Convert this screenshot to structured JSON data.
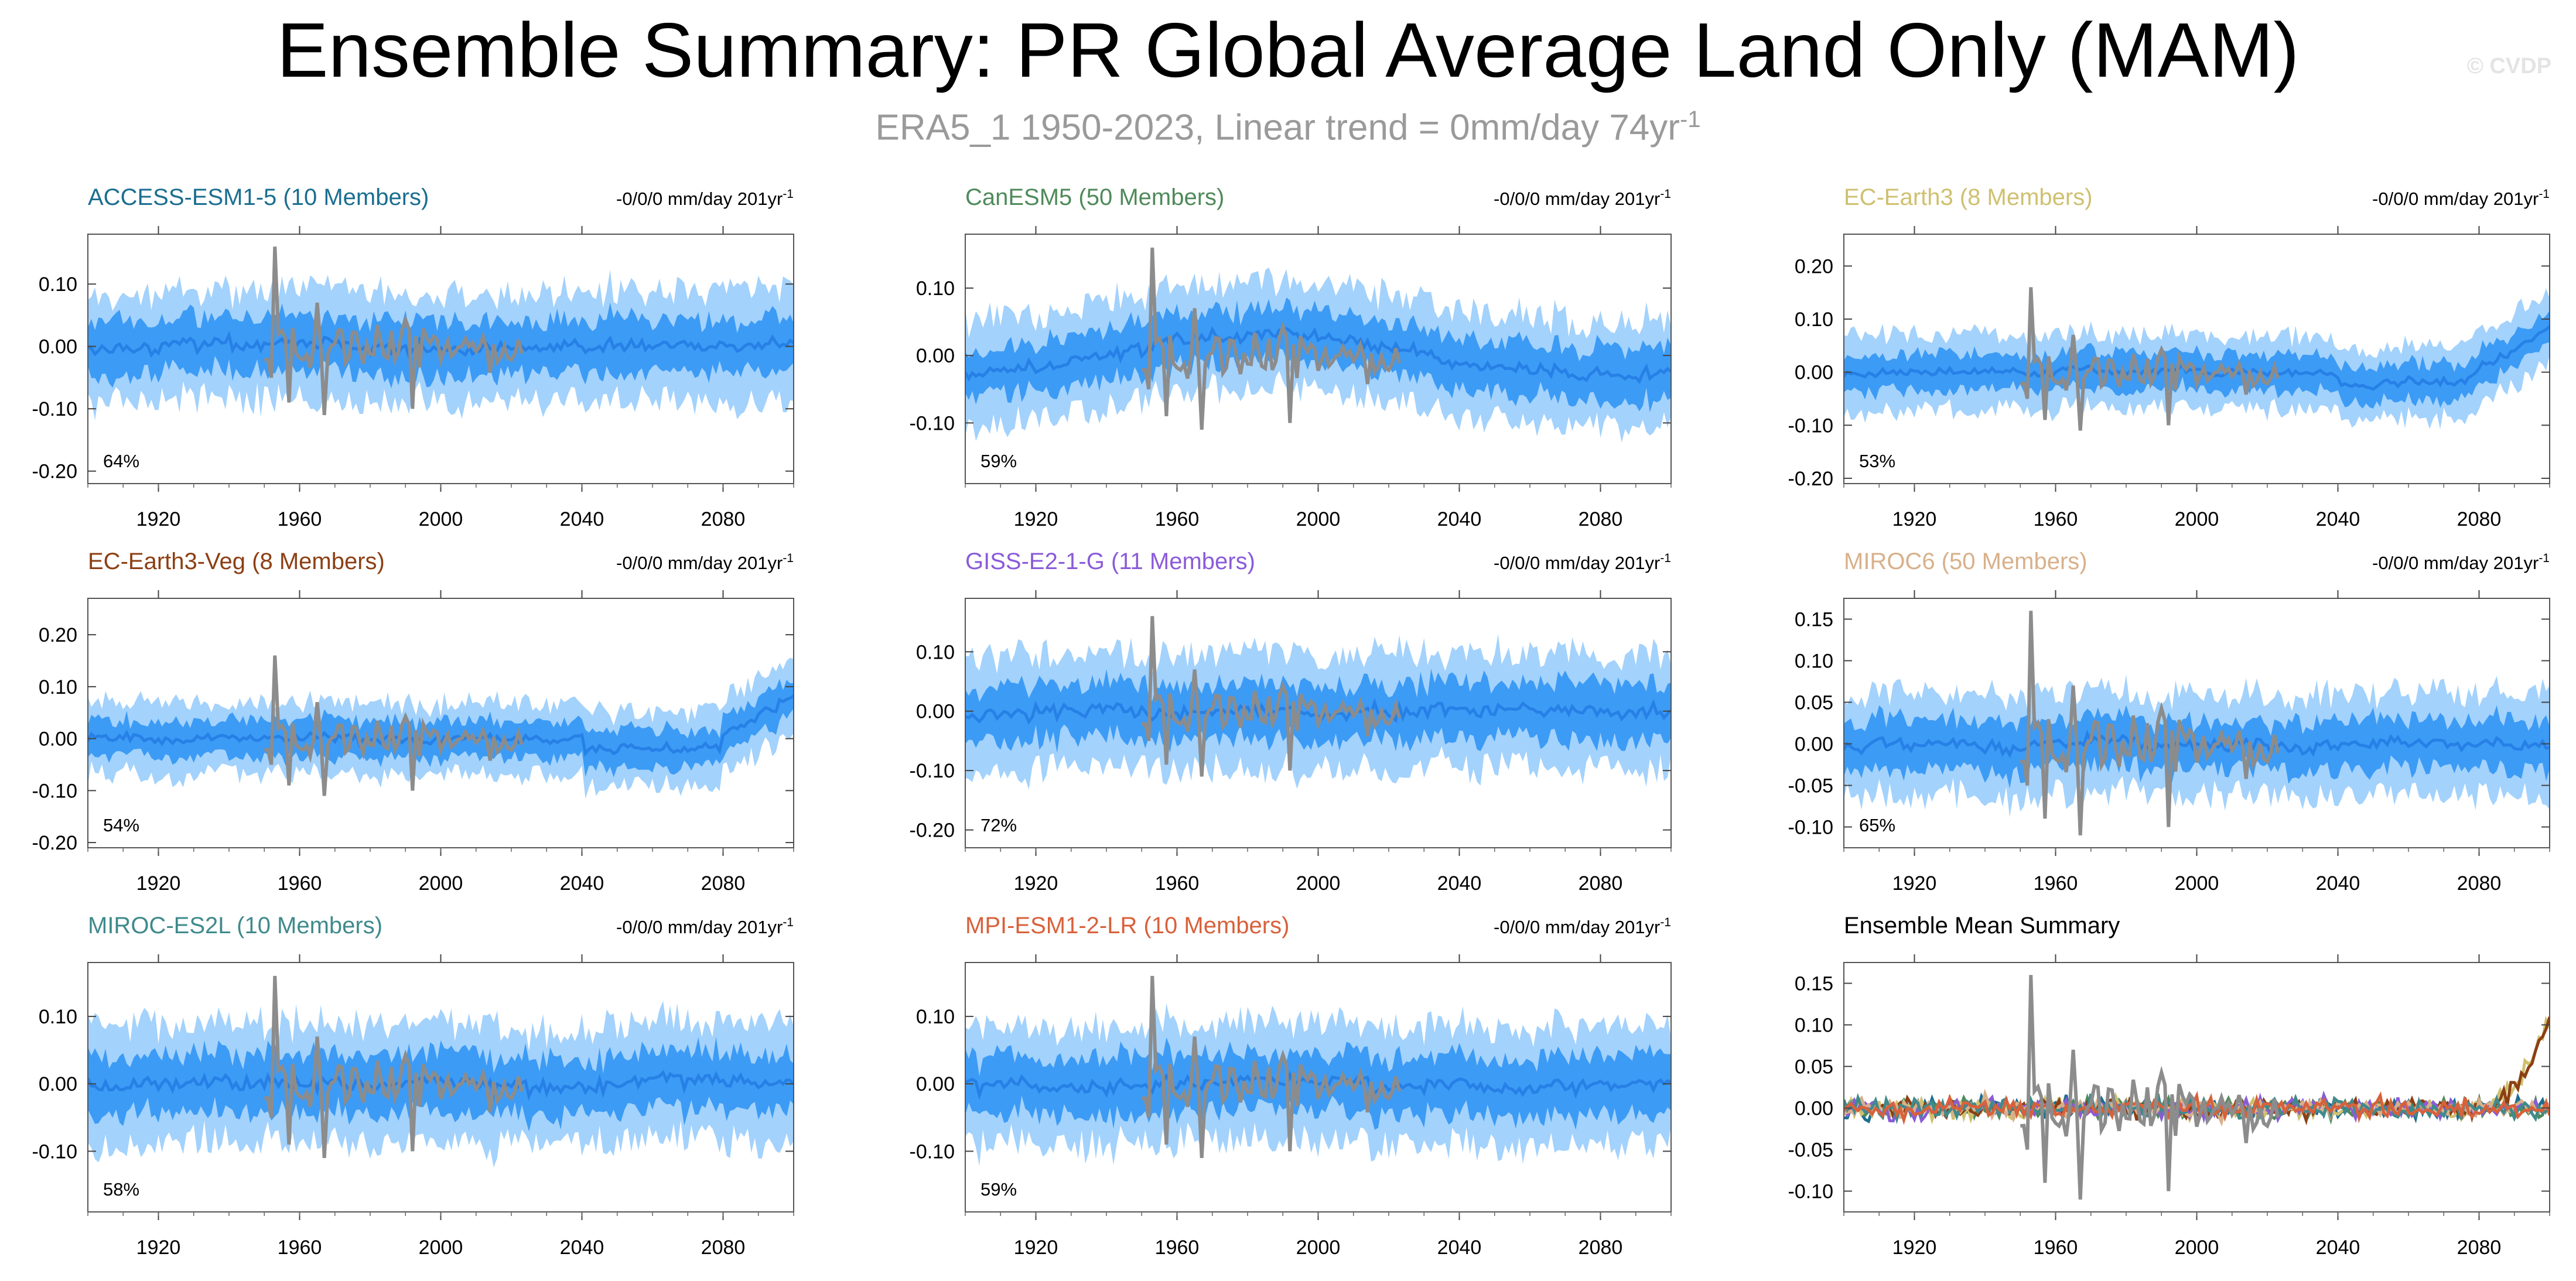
{
  "header": {
    "title": "Ensemble Summary: PR Global Average Land Only (MAM)",
    "subtitle_main": "ERA5_1 1950-2023, Linear trend = 0mm/day 74yr",
    "subtitle_sup": "-1",
    "copyright": "© CVDP"
  },
  "colors": {
    "band_outer": "#a3d2fc",
    "band_inner": "#3c9bf5",
    "mean_line": "#2680e6",
    "observed": "#8c8c8c"
  },
  "chart_data": [
    {
      "type": "line",
      "title": "ACCESS-ESM1-5 (10 Members)",
      "title_color": "#1b6e90",
      "trend": "-0/0/0 mm/day 201yr",
      "trend_sup": "-1",
      "percent": "64%",
      "ylim": [
        -0.22,
        0.18
      ],
      "yticks": [
        -0.2,
        -0.1,
        0.0,
        0.1
      ],
      "ytick_labels": [
        "-0.20",
        "-0.10",
        "0.00",
        "0.10"
      ],
      "xlim": [
        1900,
        2100
      ],
      "xticks": [
        1920,
        1960,
        2000,
        2040,
        2080
      ],
      "xtick_labels": [
        "1920",
        "1960",
        "2000",
        "2040",
        "2080"
      ],
      "amp": 0.05,
      "base": 0.0,
      "obs_amp": 0.06,
      "seed": 11
    },
    {
      "type": "line",
      "title": "CanESM5 (50 Members)",
      "title_color": "#4f8a5a",
      "trend": "-0/0/0 mm/day 201yr",
      "trend_sup": "-1",
      "percent": "59%",
      "ylim": [
        -0.19,
        0.18
      ],
      "yticks": [
        -0.1,
        0.0,
        0.1
      ],
      "ytick_labels": [
        "-0.10",
        "0.00",
        "0.10"
      ],
      "xlim": [
        1900,
        2100
      ],
      "xticks": [
        1920,
        1960,
        2000,
        2040,
        2080
      ],
      "xtick_labels": [
        "1920",
        "1960",
        "2000",
        "2040",
        "2080"
      ],
      "amp": 0.045,
      "base": 0.0,
      "obs_amp": 0.06,
      "seed": 23
    },
    {
      "type": "line",
      "title": "EC-Earth3 (8 Members)",
      "title_color": "#cfc070",
      "trend": "-0/0/0 mm/day 201yr",
      "trend_sup": "-1",
      "percent": "53%",
      "ylim": [
        -0.21,
        0.26
      ],
      "yticks": [
        -0.2,
        -0.1,
        0.0,
        0.1,
        0.2
      ],
      "ytick_labels": [
        "-0.20",
        "-0.10",
        "0.00",
        "0.10",
        "0.20"
      ],
      "xlim": [
        1900,
        2100
      ],
      "xticks": [
        1920,
        1960,
        2000,
        2040,
        2080
      ],
      "xtick_labels": [
        "1920",
        "1960",
        "2000",
        "2040",
        "2080"
      ],
      "amp": 0.04,
      "base": 0.0,
      "obs_amp": 0.06,
      "seed": 37
    },
    {
      "type": "line",
      "title": "EC-Earth3-Veg (8 Members)",
      "title_color": "#8c3f13",
      "trend": "-0/0/0 mm/day 201yr",
      "trend_sup": "-1",
      "percent": "54%",
      "ylim": [
        -0.21,
        0.27
      ],
      "yticks": [
        -0.2,
        -0.1,
        0.0,
        0.1,
        0.2
      ],
      "ytick_labels": [
        "-0.20",
        "-0.10",
        "0.00",
        "0.10",
        "0.20"
      ],
      "xlim": [
        1900,
        2100
      ],
      "xticks": [
        1920,
        1960,
        2000,
        2040,
        2080
      ],
      "xtick_labels": [
        "1920",
        "1960",
        "2000",
        "2040",
        "2080"
      ],
      "amp": 0.04,
      "base": 0.0,
      "obs_amp": 0.06,
      "seed": 41
    },
    {
      "type": "line",
      "title": "GISS-E2-1-G (11 Members)",
      "title_color": "#8a5bd8",
      "trend": "-0/0/0 mm/day 201yr",
      "trend_sup": "-1",
      "percent": "72%",
      "ylim": [
        -0.23,
        0.19
      ],
      "yticks": [
        -0.2,
        -0.1,
        0.0,
        0.1
      ],
      "ytick_labels": [
        "-0.20",
        "-0.10",
        "0.00",
        "0.10"
      ],
      "xlim": [
        1900,
        2100
      ],
      "xticks": [
        1920,
        1960,
        2000,
        2040,
        2080
      ],
      "xtick_labels": [
        "1920",
        "1960",
        "2000",
        "2040",
        "2080"
      ],
      "amp": 0.055,
      "base": 0.0,
      "obs_amp": 0.06,
      "seed": 53
    },
    {
      "type": "line",
      "title": "MIROC6 (50 Members)",
      "title_color": "#d8b08a",
      "trend": "-0/0/0 mm/day 201yr",
      "trend_sup": "-1",
      "percent": "65%",
      "ylim": [
        -0.125,
        0.175
      ],
      "yticks": [
        -0.1,
        -0.05,
        0.0,
        0.05,
        0.1,
        0.15
      ],
      "ytick_labels": [
        "-0.10",
        "-0.05",
        "0.00",
        "0.05",
        "0.10",
        "0.15"
      ],
      "xlim": [
        1900,
        2100
      ],
      "xticks": [
        1920,
        1960,
        2000,
        2040,
        2080
      ],
      "xtick_labels": [
        "1920",
        "1960",
        "2000",
        "2040",
        "2080"
      ],
      "amp": 0.035,
      "base": 0.0,
      "obs_amp": 0.06,
      "seed": 67
    },
    {
      "type": "line",
      "title": "MIROC-ES2L (10 Members)",
      "title_color": "#3f8a8c",
      "trend": "-0/0/0 mm/day 201yr",
      "trend_sup": "-1",
      "percent": "58%",
      "ylim": [
        -0.19,
        0.18
      ],
      "yticks": [
        -0.1,
        0.0,
        0.1
      ],
      "ytick_labels": [
        "-0.10",
        "0.00",
        "0.10"
      ],
      "xlim": [
        1900,
        2100
      ],
      "xticks": [
        1920,
        1960,
        2000,
        2040,
        2080
      ],
      "xtick_labels": [
        "1920",
        "1960",
        "2000",
        "2040",
        "2080"
      ],
      "amp": 0.05,
      "base": 0.0,
      "obs_amp": 0.06,
      "seed": 71
    },
    {
      "type": "line",
      "title": "MPI-ESM1-2-LR (10 Members)",
      "title_color": "#d8613b",
      "trend": "-0/0/0 mm/day 201yr",
      "trend_sup": "-1",
      "percent": "59%",
      "ylim": [
        -0.19,
        0.18
      ],
      "yticks": [
        -0.1,
        0.0,
        0.1
      ],
      "ytick_labels": [
        "-0.10",
        "0.00",
        "0.10"
      ],
      "xlim": [
        1900,
        2100
      ],
      "xticks": [
        1920,
        1960,
        2000,
        2040,
        2080
      ],
      "xtick_labels": [
        "1920",
        "1960",
        "2000",
        "2040",
        "2080"
      ],
      "amp": 0.05,
      "base": 0.0,
      "obs_amp": 0.06,
      "seed": 83
    },
    {
      "type": "line",
      "title": "Ensemble Mean Summary",
      "title_color": "#000000",
      "trend": "",
      "trend_sup": "",
      "percent": "",
      "ylim": [
        -0.125,
        0.175
      ],
      "yticks": [
        -0.1,
        -0.05,
        0.0,
        0.05,
        0.1,
        0.15
      ],
      "ytick_labels": [
        "-0.10",
        "-0.05",
        "0.00",
        "0.05",
        "0.10",
        "0.15"
      ],
      "xlim": [
        1900,
        2100
      ],
      "xticks": [
        1920,
        1960,
        2000,
        2040,
        2080
      ],
      "xtick_labels": [
        "1920",
        "1960",
        "2000",
        "2040",
        "2080"
      ],
      "summary": true,
      "series_colors": [
        "#1b6e90",
        "#4f8a5a",
        "#cfc070",
        "#8c3f13",
        "#8a5bd8",
        "#d8b08a",
        "#3f8a8c",
        "#d8613b"
      ],
      "seed": 97
    }
  ]
}
